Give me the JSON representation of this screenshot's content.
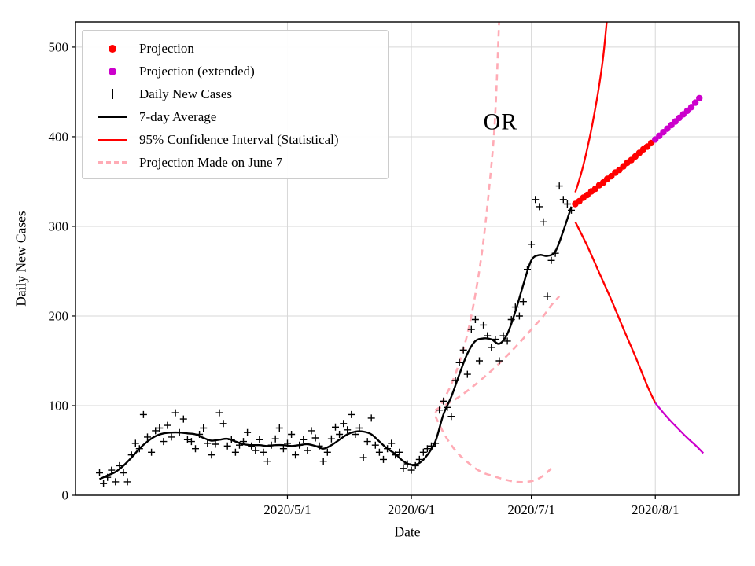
{
  "chart_data": {
    "type": "line",
    "title": "",
    "xlabel": "Date",
    "ylabel": "Daily New Cases",
    "annotation": {
      "text": "OR",
      "x": "2020-06-19",
      "y": 415
    },
    "xlim": [
      "2020-03-09",
      "2020-08-22"
    ],
    "ylim": [
      0,
      528
    ],
    "grid": true,
    "legend_position": "upper left",
    "x_ticks": [
      {
        "date": "2020-05-01",
        "label": "2020/5/1"
      },
      {
        "date": "2020-06-01",
        "label": "2020/6/1"
      },
      {
        "date": "2020-07-01",
        "label": "2020/7/1"
      },
      {
        "date": "2020-08-01",
        "label": "2020/8/1"
      }
    ],
    "y_ticks": [
      0,
      100,
      200,
      300,
      400,
      500
    ],
    "colors": {
      "projection": "#ff0000",
      "projection_extended": "#cc00cc",
      "daily_cases": "#000000",
      "average": "#000000",
      "confidence": "#ff0000",
      "june7": "#ffabb5"
    },
    "legend": [
      {
        "label": "Projection",
        "marker": "dot",
        "color_key": "projection"
      },
      {
        "label": "Projection (extended)",
        "marker": "dot",
        "color_key": "projection_extended"
      },
      {
        "label": "Daily New Cases",
        "marker": "plus",
        "color_key": "daily_cases"
      },
      {
        "label": "7-day Average",
        "marker": "line",
        "color_key": "average"
      },
      {
        "label": "95% Confidence Interval (Statistical)",
        "marker": "line",
        "color_key": "confidence"
      },
      {
        "label": "Projection Made on June 7",
        "marker": "dash",
        "color_key": "june7"
      }
    ],
    "series": {
      "daily_new_cases": [
        [
          "2020-03-15",
          25
        ],
        [
          "2020-03-16",
          13
        ],
        [
          "2020-03-17",
          20
        ],
        [
          "2020-03-18",
          28
        ],
        [
          "2020-03-19",
          15
        ],
        [
          "2020-03-20",
          33
        ],
        [
          "2020-03-21",
          25
        ],
        [
          "2020-03-22",
          15
        ],
        [
          "2020-03-23",
          45
        ],
        [
          "2020-03-24",
          58
        ],
        [
          "2020-03-25",
          52
        ],
        [
          "2020-03-26",
          90
        ],
        [
          "2020-03-27",
          65
        ],
        [
          "2020-03-28",
          48
        ],
        [
          "2020-03-29",
          72
        ],
        [
          "2020-03-30",
          75
        ],
        [
          "2020-03-31",
          60
        ],
        [
          "2020-04-01",
          78
        ],
        [
          "2020-04-02",
          65
        ],
        [
          "2020-04-03",
          92
        ],
        [
          "2020-04-04",
          70
        ],
        [
          "2020-04-05",
          85
        ],
        [
          "2020-04-06",
          62
        ],
        [
          "2020-04-07",
          60
        ],
        [
          "2020-04-08",
          52
        ],
        [
          "2020-04-09",
          68
        ],
        [
          "2020-04-10",
          75
        ],
        [
          "2020-04-11",
          58
        ],
        [
          "2020-04-12",
          45
        ],
        [
          "2020-04-13",
          57
        ],
        [
          "2020-04-14",
          92
        ],
        [
          "2020-04-15",
          80
        ],
        [
          "2020-04-16",
          55
        ],
        [
          "2020-04-17",
          62
        ],
        [
          "2020-04-18",
          48
        ],
        [
          "2020-04-19",
          56
        ],
        [
          "2020-04-20",
          60
        ],
        [
          "2020-04-21",
          70
        ],
        [
          "2020-04-22",
          55
        ],
        [
          "2020-04-23",
          50
        ],
        [
          "2020-04-24",
          62
        ],
        [
          "2020-04-25",
          48
        ],
        [
          "2020-04-26",
          38
        ],
        [
          "2020-04-27",
          56
        ],
        [
          "2020-04-28",
          63
        ],
        [
          "2020-04-29",
          75
        ],
        [
          "2020-04-30",
          52
        ],
        [
          "2020-05-01",
          58
        ],
        [
          "2020-05-02",
          68
        ],
        [
          "2020-05-03",
          45
        ],
        [
          "2020-05-04",
          56
        ],
        [
          "2020-05-05",
          62
        ],
        [
          "2020-05-06",
          50
        ],
        [
          "2020-05-07",
          72
        ],
        [
          "2020-05-08",
          64
        ],
        [
          "2020-05-09",
          55
        ],
        [
          "2020-05-10",
          38
        ],
        [
          "2020-05-11",
          48
        ],
        [
          "2020-05-12",
          63
        ],
        [
          "2020-05-13",
          76
        ],
        [
          "2020-05-14",
          68
        ],
        [
          "2020-05-15",
          80
        ],
        [
          "2020-05-16",
          73
        ],
        [
          "2020-05-17",
          90
        ],
        [
          "2020-05-18",
          68
        ],
        [
          "2020-05-19",
          75
        ],
        [
          "2020-05-20",
          42
        ],
        [
          "2020-05-21",
          60
        ],
        [
          "2020-05-22",
          86
        ],
        [
          "2020-05-23",
          56
        ],
        [
          "2020-05-24",
          48
        ],
        [
          "2020-05-25",
          40
        ],
        [
          "2020-05-26",
          52
        ],
        [
          "2020-05-27",
          58
        ],
        [
          "2020-05-28",
          45
        ],
        [
          "2020-05-29",
          48
        ],
        [
          "2020-05-30",
          30
        ],
        [
          "2020-05-31",
          35
        ],
        [
          "2020-06-01",
          28
        ],
        [
          "2020-06-02",
          33
        ],
        [
          "2020-06-03",
          40
        ],
        [
          "2020-06-04",
          48
        ],
        [
          "2020-06-05",
          52
        ],
        [
          "2020-06-06",
          55
        ],
        [
          "2020-06-07",
          58
        ],
        [
          "2020-06-08",
          95
        ],
        [
          "2020-06-09",
          105
        ],
        [
          "2020-06-10",
          98
        ],
        [
          "2020-06-11",
          88
        ],
        [
          "2020-06-12",
          128
        ],
        [
          "2020-06-13",
          148
        ],
        [
          "2020-06-14",
          162
        ],
        [
          "2020-06-15",
          135
        ],
        [
          "2020-06-16",
          185
        ],
        [
          "2020-06-17",
          196
        ],
        [
          "2020-06-18",
          150
        ],
        [
          "2020-06-19",
          190
        ],
        [
          "2020-06-20",
          178
        ],
        [
          "2020-06-21",
          165
        ],
        [
          "2020-06-22",
          174
        ],
        [
          "2020-06-23",
          150
        ],
        [
          "2020-06-24",
          178
        ],
        [
          "2020-06-25",
          172
        ],
        [
          "2020-06-26",
          196
        ],
        [
          "2020-06-27",
          210
        ],
        [
          "2020-06-28",
          200
        ],
        [
          "2020-06-29",
          216
        ],
        [
          "2020-06-30",
          252
        ],
        [
          "2020-07-01",
          280
        ],
        [
          "2020-07-02",
          330
        ],
        [
          "2020-07-03",
          322
        ],
        [
          "2020-07-04",
          305
        ],
        [
          "2020-07-05",
          222
        ],
        [
          "2020-07-06",
          262
        ],
        [
          "2020-07-07",
          270
        ],
        [
          "2020-07-08",
          345
        ],
        [
          "2020-07-09",
          330
        ],
        [
          "2020-07-10",
          325
        ],
        [
          "2020-07-11",
          318
        ]
      ],
      "avg7": [
        [
          "2020-03-15",
          18
        ],
        [
          "2020-03-17",
          22
        ],
        [
          "2020-03-19",
          26
        ],
        [
          "2020-03-21",
          33
        ],
        [
          "2020-03-23",
          42
        ],
        [
          "2020-03-25",
          52
        ],
        [
          "2020-03-27",
          60
        ],
        [
          "2020-03-29",
          66
        ],
        [
          "2020-03-31",
          69
        ],
        [
          "2020-04-02",
          70
        ],
        [
          "2020-04-04",
          70
        ],
        [
          "2020-04-06",
          69
        ],
        [
          "2020-04-08",
          68
        ],
        [
          "2020-04-10",
          64
        ],
        [
          "2020-04-12",
          61
        ],
        [
          "2020-04-14",
          62
        ],
        [
          "2020-04-16",
          63
        ],
        [
          "2020-04-18",
          60
        ],
        [
          "2020-04-20",
          57
        ],
        [
          "2020-04-22",
          56
        ],
        [
          "2020-04-24",
          56
        ],
        [
          "2020-04-26",
          55
        ],
        [
          "2020-04-28",
          56
        ],
        [
          "2020-04-30",
          56
        ],
        [
          "2020-05-02",
          55
        ],
        [
          "2020-05-04",
          56
        ],
        [
          "2020-05-06",
          57
        ],
        [
          "2020-05-08",
          55
        ],
        [
          "2020-05-10",
          52
        ],
        [
          "2020-05-12",
          56
        ],
        [
          "2020-05-14",
          62
        ],
        [
          "2020-05-16",
          68
        ],
        [
          "2020-05-18",
          71
        ],
        [
          "2020-05-20",
          71
        ],
        [
          "2020-05-22",
          68
        ],
        [
          "2020-05-24",
          60
        ],
        [
          "2020-05-26",
          52
        ],
        [
          "2020-05-28",
          46
        ],
        [
          "2020-05-30",
          38
        ],
        [
          "2020-06-01",
          34
        ],
        [
          "2020-06-03",
          36
        ],
        [
          "2020-06-05",
          45
        ],
        [
          "2020-06-07",
          60
        ],
        [
          "2020-06-09",
          90
        ],
        [
          "2020-06-11",
          110
        ],
        [
          "2020-06-13",
          135
        ],
        [
          "2020-06-15",
          158
        ],
        [
          "2020-06-17",
          172
        ],
        [
          "2020-06-19",
          175
        ],
        [
          "2020-06-21",
          174
        ],
        [
          "2020-06-23",
          169
        ],
        [
          "2020-06-25",
          180
        ],
        [
          "2020-06-27",
          205
        ],
        [
          "2020-06-29",
          235
        ],
        [
          "2020-07-01",
          262
        ],
        [
          "2020-07-03",
          268
        ],
        [
          "2020-07-05",
          267
        ],
        [
          "2020-07-07",
          272
        ],
        [
          "2020-07-09",
          295
        ],
        [
          "2020-07-11",
          322
        ]
      ],
      "projection": [
        [
          "2020-07-12",
          325
        ],
        [
          "2020-07-13",
          328
        ],
        [
          "2020-07-14",
          332
        ],
        [
          "2020-07-15",
          335
        ],
        [
          "2020-07-16",
          339
        ],
        [
          "2020-07-17",
          342
        ],
        [
          "2020-07-18",
          346
        ],
        [
          "2020-07-19",
          349
        ],
        [
          "2020-07-20",
          353
        ],
        [
          "2020-07-21",
          356
        ],
        [
          "2020-07-22",
          360
        ],
        [
          "2020-07-23",
          363
        ],
        [
          "2020-07-24",
          367
        ],
        [
          "2020-07-25",
          371
        ],
        [
          "2020-07-26",
          374
        ],
        [
          "2020-07-27",
          378
        ],
        [
          "2020-07-28",
          382
        ],
        [
          "2020-07-29",
          386
        ],
        [
          "2020-07-30",
          389
        ],
        [
          "2020-07-31",
          393
        ]
      ],
      "projection_extended": [
        [
          "2020-08-01",
          397
        ],
        [
          "2020-08-02",
          401
        ],
        [
          "2020-08-03",
          405
        ],
        [
          "2020-08-04",
          409
        ],
        [
          "2020-08-05",
          413
        ],
        [
          "2020-08-06",
          417
        ],
        [
          "2020-08-07",
          421
        ],
        [
          "2020-08-08",
          425
        ],
        [
          "2020-08-09",
          429
        ],
        [
          "2020-08-10",
          433
        ],
        [
          "2020-08-11",
          438
        ],
        [
          "2020-08-12",
          443
        ]
      ],
      "ci_upper": [
        [
          "2020-07-12",
          338
        ],
        [
          "2020-07-13",
          352
        ],
        [
          "2020-07-14",
          368
        ],
        [
          "2020-07-15",
          387
        ],
        [
          "2020-07-16",
          408
        ],
        [
          "2020-07-17",
          432
        ],
        [
          "2020-07-18",
          458
        ],
        [
          "2020-07-19",
          490
        ],
        [
          "2020-07-20",
          535
        ]
      ],
      "ci_lower": [
        [
          "2020-07-12",
          305
        ],
        [
          "2020-07-15",
          278
        ],
        [
          "2020-07-18",
          248
        ],
        [
          "2020-07-21",
          218
        ],
        [
          "2020-07-24",
          186
        ],
        [
          "2020-07-27",
          155
        ],
        [
          "2020-07-30",
          122
        ],
        [
          "2020-08-01",
          103
        ]
      ],
      "ci_lower_extended": [
        [
          "2020-08-01",
          103
        ],
        [
          "2020-08-03",
          92
        ],
        [
          "2020-08-05",
          82
        ],
        [
          "2020-08-07",
          73
        ],
        [
          "2020-08-09",
          64
        ],
        [
          "2020-08-11",
          56
        ],
        [
          "2020-08-13",
          47
        ]
      ],
      "june7_upper": [
        [
          "2020-06-07",
          92
        ],
        [
          "2020-06-09",
          106
        ],
        [
          "2020-06-11",
          124
        ],
        [
          "2020-06-13",
          148
        ],
        [
          "2020-06-15",
          180
        ],
        [
          "2020-06-17",
          224
        ],
        [
          "2020-06-19",
          283
        ],
        [
          "2020-06-21",
          368
        ],
        [
          "2020-06-22",
          428
        ],
        [
          "2020-06-23",
          535
        ]
      ],
      "june7_central": [
        [
          "2020-06-07",
          95
        ],
        [
          "2020-06-10",
          102
        ],
        [
          "2020-06-13",
          110
        ],
        [
          "2020-06-16",
          120
        ],
        [
          "2020-06-19",
          131
        ],
        [
          "2020-06-22",
          143
        ],
        [
          "2020-06-25",
          156
        ],
        [
          "2020-06-28",
          170
        ],
        [
          "2020-07-01",
          185
        ],
        [
          "2020-07-04",
          200
        ],
        [
          "2020-07-06",
          212
        ],
        [
          "2020-07-08",
          222
        ]
      ],
      "june7_lower": [
        [
          "2020-06-07",
          88
        ],
        [
          "2020-06-09",
          70
        ],
        [
          "2020-06-11",
          56
        ],
        [
          "2020-06-13",
          45
        ],
        [
          "2020-06-15",
          37
        ],
        [
          "2020-06-17",
          30
        ],
        [
          "2020-06-19",
          25
        ],
        [
          "2020-06-21",
          22
        ],
        [
          "2020-06-24",
          18
        ],
        [
          "2020-06-27",
          15
        ],
        [
          "2020-06-30",
          15
        ],
        [
          "2020-07-02",
          17
        ],
        [
          "2020-07-04",
          22
        ],
        [
          "2020-07-06",
          30
        ]
      ]
    }
  }
}
